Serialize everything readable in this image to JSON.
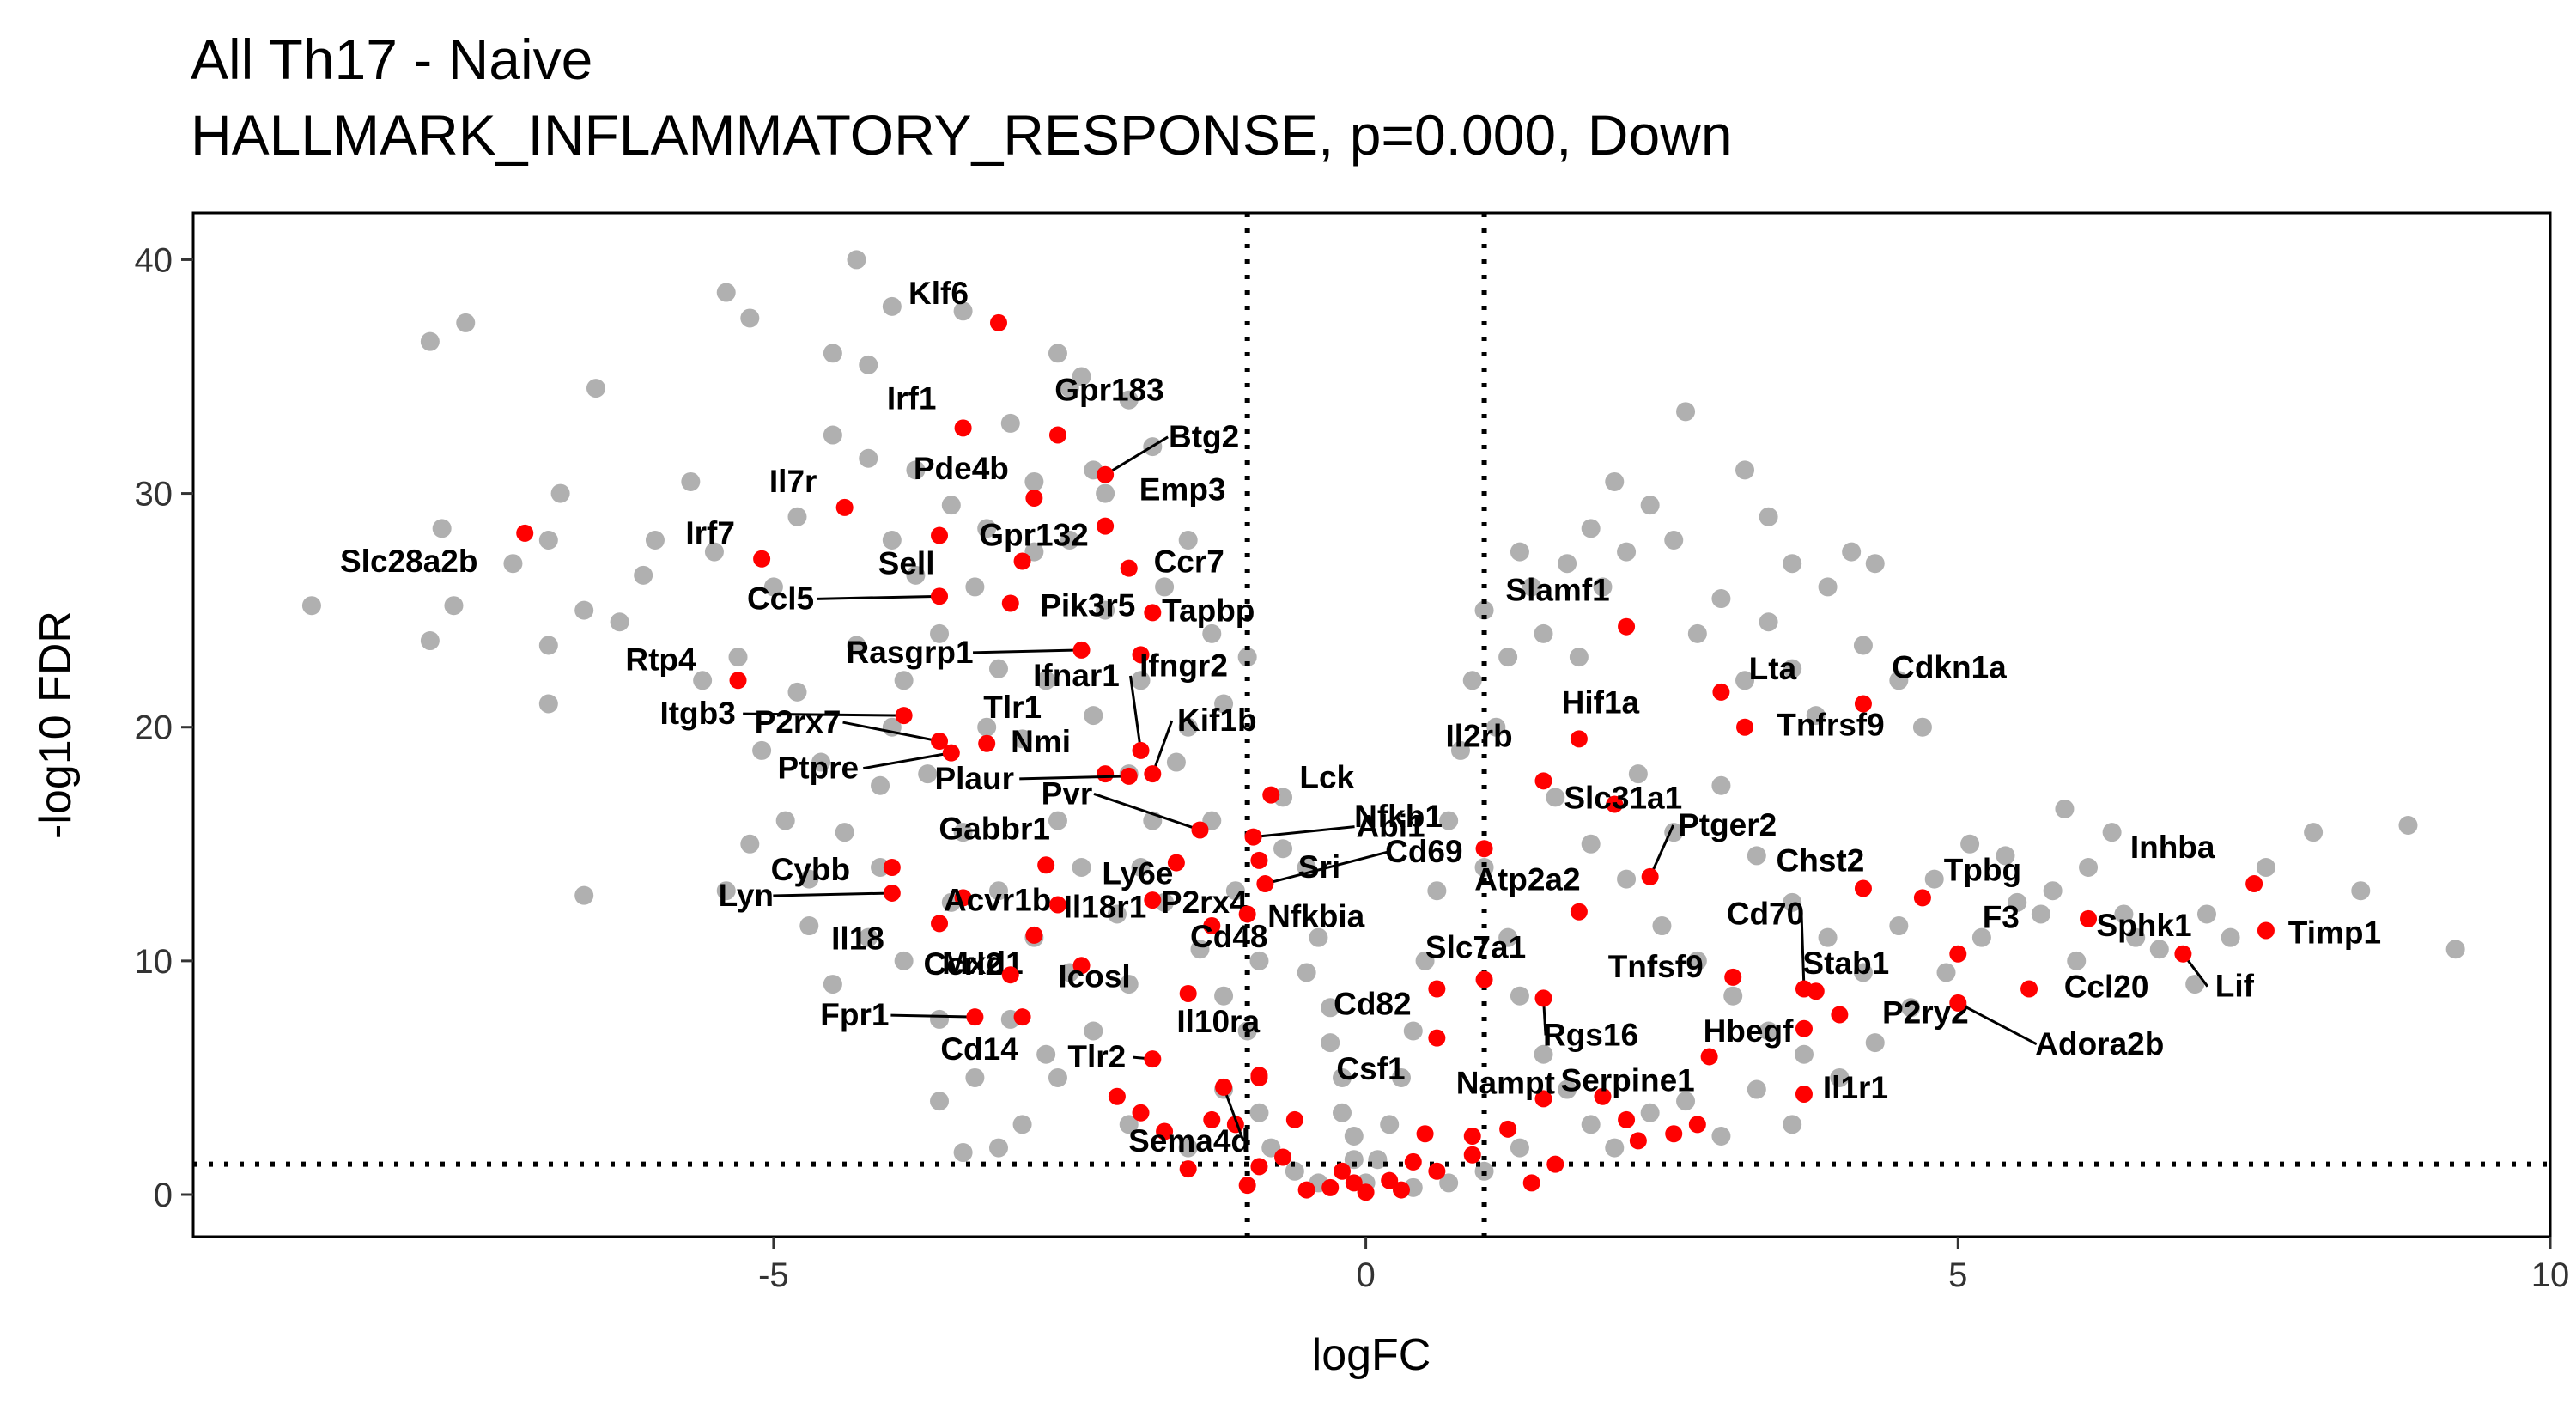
{
  "chart_data": {
    "type": "scatter",
    "title": "All Th17 - Naive",
    "subtitle": "HALLMARK_INFLAMMATORY_RESPONSE, p=0.000, Down",
    "xlabel": "logFC",
    "ylabel": "-log10 FDR",
    "xlim": [
      -9.9,
      10.0
    ],
    "ylim": [
      -1.8,
      42
    ],
    "xticks": [
      -5,
      0,
      5,
      10
    ],
    "yticks": [
      0,
      10,
      20,
      30,
      40
    ],
    "xtick_labels": [
      "-5",
      "0",
      "5",
      "10"
    ],
    "ytick_labels": [
      "0",
      "10",
      "20",
      "30",
      "40"
    ],
    "grid": false,
    "legend": "none",
    "thresholds": {
      "logfc": [
        -1,
        1
      ],
      "neg_log10_fdr": 1.3
    },
    "background_points_color": "#b0b0b0",
    "highlight_color": "#ff0000",
    "background_points": [
      [
        -8.9,
        25.2
      ],
      [
        -7.9,
        36.5
      ],
      [
        -7.6,
        37.3
      ],
      [
        -7.8,
        28.5
      ],
      [
        -7.2,
        27.0
      ],
      [
        -6.9,
        28.0
      ],
      [
        -6.5,
        34.5
      ],
      [
        -6.8,
        30.0
      ],
      [
        -6.6,
        25.0
      ],
      [
        -6.3,
        24.5
      ],
      [
        -6.0,
        28.0
      ],
      [
        -6.1,
        26.5
      ],
      [
        -5.7,
        30.5
      ],
      [
        -5.5,
        27.5
      ],
      [
        -6.6,
        12.8
      ],
      [
        -6.9,
        23.5
      ],
      [
        -6.9,
        21.0
      ],
      [
        -7.7,
        25.2
      ],
      [
        -7.9,
        23.7
      ],
      [
        -5.4,
        38.6
      ],
      [
        -5.2,
        37.5
      ],
      [
        -4.5,
        36.0
      ],
      [
        -4.2,
        35.5
      ],
      [
        -4.5,
        32.5
      ],
      [
        -4.2,
        31.5
      ],
      [
        -3.8,
        31.0
      ],
      [
        -4.8,
        29.0
      ],
      [
        -4.0,
        28.0
      ],
      [
        -3.5,
        29.5
      ],
      [
        -3.0,
        33.0
      ],
      [
        -2.5,
        34.5
      ],
      [
        -2.8,
        30.5
      ],
      [
        -2.3,
        31.0
      ],
      [
        -2.8,
        27.5
      ],
      [
        -2.0,
        34.0
      ],
      [
        -4.3,
        40.0
      ],
      [
        -4.0,
        38.0
      ],
      [
        -3.4,
        37.8
      ],
      [
        -2.6,
        36.0
      ],
      [
        -2.4,
        35.0
      ],
      [
        -1.8,
        32.0
      ],
      [
        -2.2,
        30.0
      ],
      [
        -1.7,
        26.0
      ],
      [
        -1.5,
        28.0
      ],
      [
        -1.3,
        24.0
      ],
      [
        -1.0,
        23.0
      ],
      [
        -1.2,
        21.0
      ],
      [
        -1.5,
        20.0
      ],
      [
        -0.7,
        17.0
      ],
      [
        -0.5,
        14.0
      ],
      [
        -0.4,
        11.0
      ],
      [
        -0.3,
        8.0
      ],
      [
        -0.2,
        5.0
      ],
      [
        -0.1,
        2.5
      ],
      [
        0.0,
        0.5
      ],
      [
        -5.0,
        26.0
      ],
      [
        -5.3,
        23.0
      ],
      [
        -5.6,
        22.0
      ],
      [
        -5.1,
        19.0
      ],
      [
        -4.8,
        21.5
      ],
      [
        -4.6,
        18.5
      ],
      [
        -4.9,
        16.0
      ],
      [
        -5.2,
        15.0
      ],
      [
        -5.4,
        13.0
      ],
      [
        -4.7,
        13.5
      ],
      [
        -4.4,
        15.5
      ],
      [
        -4.1,
        17.5
      ],
      [
        -3.9,
        22.0
      ],
      [
        -3.6,
        24.0
      ],
      [
        -3.3,
        26.0
      ],
      [
        -3.1,
        22.5
      ],
      [
        -2.9,
        19.5
      ],
      [
        -2.6,
        16.0
      ],
      [
        -2.4,
        14.0
      ],
      [
        -2.1,
        12.0
      ],
      [
        -2.0,
        9.0
      ],
      [
        -2.3,
        7.0
      ],
      [
        -2.6,
        5.0
      ],
      [
        -2.9,
        3.0
      ],
      [
        -3.3,
        5.0
      ],
      [
        -3.6,
        7.5
      ],
      [
        -3.9,
        10.0
      ],
      [
        -4.2,
        11.0
      ],
      [
        -4.5,
        9.0
      ],
      [
        -3.6,
        4.0
      ],
      [
        -3.1,
        2.0
      ],
      [
        -2.0,
        3.0
      ],
      [
        -1.5,
        2.0
      ],
      [
        -1.2,
        4.5
      ],
      [
        -0.9,
        3.5
      ],
      [
        -0.8,
        2.0
      ],
      [
        -0.6,
        1.0
      ],
      [
        -0.4,
        0.5
      ],
      [
        -3.4,
        1.8
      ],
      [
        -1.9,
        14.0
      ],
      [
        -1.7,
        12.5
      ],
      [
        -1.4,
        10.5
      ],
      [
        -1.2,
        8.5
      ],
      [
        -1.0,
        7.0
      ],
      [
        -0.9,
        10.0
      ],
      [
        -1.1,
        13.0
      ],
      [
        -1.3,
        16.0
      ],
      [
        -1.6,
        18.5
      ],
      [
        -1.9,
        22.0
      ],
      [
        -2.2,
        25.0
      ],
      [
        -2.5,
        28.0
      ],
      [
        -3.2,
        28.5
      ],
      [
        -3.8,
        26.5
      ],
      [
        -4.3,
        23.5
      ],
      [
        -4.0,
        20.0
      ],
      [
        -3.7,
        18.0
      ],
      [
        -3.4,
        15.5
      ],
      [
        -3.1,
        13.0
      ],
      [
        -2.8,
        11.0
      ],
      [
        -2.5,
        9.5
      ],
      [
        -3.0,
        7.5
      ],
      [
        -2.7,
        6.0
      ],
      [
        -3.5,
        12.5
      ],
      [
        -4.1,
        14.0
      ],
      [
        -4.7,
        11.5
      ],
      [
        -3.2,
        20.0
      ],
      [
        -2.7,
        22.0
      ],
      [
        -2.3,
        20.5
      ],
      [
        -2.0,
        18.0
      ],
      [
        -1.8,
        16.0
      ],
      [
        -0.7,
        14.8
      ],
      [
        -0.5,
        9.5
      ],
      [
        -0.3,
        6.5
      ],
      [
        -0.2,
        3.5
      ],
      [
        -0.1,
        1.5
      ],
      [
        0.1,
        1.5
      ],
      [
        0.2,
        3.0
      ],
      [
        0.3,
        5.0
      ],
      [
        0.4,
        7.0
      ],
      [
        0.5,
        10.0
      ],
      [
        0.6,
        13.0
      ],
      [
        0.7,
        16.0
      ],
      [
        0.8,
        19.0
      ],
      [
        0.9,
        22.0
      ],
      [
        1.0,
        25.0
      ],
      [
        1.1,
        20.0
      ],
      [
        1.2,
        23.0
      ],
      [
        1.4,
        26.0
      ],
      [
        1.5,
        24.0
      ],
      [
        1.7,
        27.0
      ],
      [
        1.8,
        23.0
      ],
      [
        2.0,
        26.0
      ],
      [
        2.2,
        27.5
      ],
      [
        2.4,
        29.5
      ],
      [
        2.6,
        28.0
      ],
      [
        2.7,
        33.5
      ],
      [
        2.8,
        24.0
      ],
      [
        3.0,
        25.5
      ],
      [
        3.2,
        22.0
      ],
      [
        3.4,
        24.5
      ],
      [
        3.6,
        22.5
      ],
      [
        3.8,
        20.5
      ],
      [
        2.1,
        30.5
      ],
      [
        1.9,
        28.5
      ],
      [
        1.3,
        27.5
      ],
      [
        1.0,
        14.0
      ],
      [
        1.2,
        11.0
      ],
      [
        1.3,
        8.5
      ],
      [
        1.5,
        6.0
      ],
      [
        1.7,
        4.5
      ],
      [
        1.9,
        3.0
      ],
      [
        2.1,
        2.0
      ],
      [
        1.3,
        2.0
      ],
      [
        1.0,
        1.0
      ],
      [
        0.7,
        0.5
      ],
      [
        0.4,
        0.3
      ],
      [
        1.6,
        17.0
      ],
      [
        1.9,
        15.0
      ],
      [
        2.2,
        13.5
      ],
      [
        2.5,
        11.5
      ],
      [
        2.8,
        10.0
      ],
      [
        3.1,
        8.5
      ],
      [
        3.4,
        7.0
      ],
      [
        3.7,
        6.0
      ],
      [
        4.0,
        5.0
      ],
      [
        4.3,
        6.5
      ],
      [
        4.6,
        8.0
      ],
      [
        4.9,
        9.5
      ],
      [
        5.2,
        11.0
      ],
      [
        5.5,
        12.5
      ],
      [
        5.8,
        13.0
      ],
      [
        6.1,
        14.0
      ],
      [
        6.4,
        12.0
      ],
      [
        6.7,
        10.5
      ],
      [
        7.0,
        9.0
      ],
      [
        7.3,
        11.0
      ],
      [
        7.6,
        14.0
      ],
      [
        8.0,
        15.5
      ],
      [
        8.4,
        13.0
      ],
      [
        8.8,
        15.8
      ],
      [
        9.2,
        10.5
      ],
      [
        6.3,
        15.5
      ],
      [
        5.9,
        16.5
      ],
      [
        4.5,
        22.0
      ],
      [
        4.7,
        20.0
      ],
      [
        4.2,
        23.5
      ],
      [
        3.9,
        26.0
      ],
      [
        4.1,
        27.5
      ],
      [
        4.3,
        27.0
      ],
      [
        3.6,
        27.0
      ],
      [
        3.4,
        29.0
      ],
      [
        3.2,
        31.0
      ],
      [
        2.3,
        18.0
      ],
      [
        2.6,
        15.5
      ],
      [
        3.0,
        17.5
      ],
      [
        3.3,
        14.5
      ],
      [
        3.6,
        12.5
      ],
      [
        3.9,
        11.0
      ],
      [
        4.2,
        9.5
      ],
      [
        4.5,
        11.5
      ],
      [
        4.8,
        13.5
      ],
      [
        5.1,
        15.0
      ],
      [
        5.4,
        14.5
      ],
      [
        5.7,
        12.0
      ],
      [
        6.0,
        10.0
      ],
      [
        6.5,
        11.0
      ],
      [
        7.1,
        12.0
      ],
      [
        3.0,
        2.5
      ],
      [
        2.7,
        4.0
      ],
      [
        2.4,
        3.5
      ],
      [
        3.3,
        4.5
      ],
      [
        3.6,
        3.0
      ]
    ],
    "highlighted_genes": [
      {
        "name": "Klf6",
        "x": -3.1,
        "y": 37.3
      },
      {
        "name": "Gpr183",
        "x": -2.6,
        "y": 32.5
      },
      {
        "name": "Irf1",
        "x": -3.4,
        "y": 32.8
      },
      {
        "name": "Btg2",
        "x": -2.2,
        "y": 30.8
      },
      {
        "name": "Il7r",
        "x": -4.4,
        "y": 29.4
      },
      {
        "name": "Pde4b",
        "x": -2.8,
        "y": 29.8
      },
      {
        "name": "Emp3",
        "x": -2.2,
        "y": 28.6
      },
      {
        "name": "Slc28a2b",
        "x": -7.1,
        "y": 28.3
      },
      {
        "name": "Irf7",
        "x": -5.1,
        "y": 27.2
      },
      {
        "name": "Gpr132",
        "x": -3.6,
        "y": 28.2
      },
      {
        "name": "Sell",
        "x": -2.9,
        "y": 27.1
      },
      {
        "name": "Ccr7",
        "x": -2.0,
        "y": 26.8
      },
      {
        "name": "Ccl5",
        "x": -3.6,
        "y": 25.6
      },
      {
        "name": "Pik3r5",
        "x": -3.0,
        "y": 25.3
      },
      {
        "name": "Tapbp",
        "x": -1.8,
        "y": 24.9
      },
      {
        "name": "Rasgrp1",
        "x": -2.4,
        "y": 23.3
      },
      {
        "name": "Ifngr2",
        "x": -1.9,
        "y": 23.1
      },
      {
        "name": "Rtp4",
        "x": -5.3,
        "y": 22.0
      },
      {
        "name": "Ifnar1",
        "x": -1.9,
        "y": 19.0
      },
      {
        "name": "Itgb3",
        "x": -3.9,
        "y": 20.5
      },
      {
        "name": "P2rx7",
        "x": -3.6,
        "y": 19.4
      },
      {
        "name": "Tlr1",
        "x": -3.2,
        "y": 19.3
      },
      {
        "name": "Ptpre",
        "x": -3.5,
        "y": 18.9
      },
      {
        "name": "Nmi",
        "x": -2.2,
        "y": 18.0
      },
      {
        "name": "Kif1b",
        "x": -1.8,
        "y": 18.0
      },
      {
        "name": "Plaur",
        "x": -2.0,
        "y": 17.9
      },
      {
        "name": "Lck",
        "x": -0.8,
        "y": 17.1
      },
      {
        "name": "Pvr",
        "x": -1.4,
        "y": 15.6
      },
      {
        "name": "Abi1",
        "x": -0.95,
        "y": 15.3
      },
      {
        "name": "Cybb",
        "x": -4.0,
        "y": 14.0
      },
      {
        "name": "Gabbr1",
        "x": -2.7,
        "y": 14.1
      },
      {
        "name": "Ly6e",
        "x": -1.6,
        "y": 14.2
      },
      {
        "name": "Sri",
        "x": -0.9,
        "y": 14.3
      },
      {
        "name": "Cd69",
        "x": -0.85,
        "y": 13.3
      },
      {
        "name": "Lyn",
        "x": -4.0,
        "y": 12.9
      },
      {
        "name": "Acvr1b",
        "x": -3.4,
        "y": 12.7
      },
      {
        "name": "Il18r1",
        "x": -2.6,
        "y": 12.4
      },
      {
        "name": "P2rx4",
        "x": -1.8,
        "y": 12.6
      },
      {
        "name": "Nfkbia",
        "x": -1.0,
        "y": 12.0
      },
      {
        "name": "Il18",
        "x": -3.6,
        "y": 11.6
      },
      {
        "name": "Mxd1",
        "x": -2.8,
        "y": 11.1
      },
      {
        "name": "Cd48",
        "x": -1.3,
        "y": 11.5
      },
      {
        "name": "Ccrl2",
        "x": -3.0,
        "y": 9.4
      },
      {
        "name": "Icosl",
        "x": -2.4,
        "y": 9.8
      },
      {
        "name": "Il10ra",
        "x": -1.5,
        "y": 8.6
      },
      {
        "name": "Fpr1",
        "x": -3.3,
        "y": 7.6
      },
      {
        "name": "Cd14",
        "x": -2.9,
        "y": 7.6
      },
      {
        "name": "Tlr2",
        "x": -1.8,
        "y": 5.8
      },
      {
        "name": "Csf1",
        "x": -0.9,
        "y": 5.1
      },
      {
        "name": "Sema4d",
        "x": -1.2,
        "y": 4.6
      },
      {
        "name": "Slamf1",
        "x": 2.2,
        "y": 24.3
      },
      {
        "name": "Lta",
        "x": 3.0,
        "y": 21.5
      },
      {
        "name": "Cdkn1a",
        "x": 4.2,
        "y": 21.0
      },
      {
        "name": "Hif1a",
        "x": 1.8,
        "y": 19.5
      },
      {
        "name": "Tnfrsf9",
        "x": 3.2,
        "y": 20.0
      },
      {
        "name": "Il2rb",
        "x": 1.5,
        "y": 17.7
      },
      {
        "name": "Slc31a1",
        "x": 2.1,
        "y": 16.7
      },
      {
        "name": "Nfkb1",
        "x": 1.0,
        "y": 14.8
      },
      {
        "name": "Ptger2",
        "x": 2.4,
        "y": 13.6
      },
      {
        "name": "Chst2",
        "x": 4.2,
        "y": 13.1
      },
      {
        "name": "Tpbg",
        "x": 4.7,
        "y": 12.7
      },
      {
        "name": "Inhba",
        "x": 7.5,
        "y": 13.3
      },
      {
        "name": "Timp1",
        "x": 7.6,
        "y": 11.3
      },
      {
        "name": "Atp2a2",
        "x": 1.8,
        "y": 12.1
      },
      {
        "name": "Sphk1",
        "x": 6.1,
        "y": 11.8
      },
      {
        "name": "F3",
        "x": 5.0,
        "y": 10.3
      },
      {
        "name": "Lif",
        "x": 6.9,
        "y": 10.3
      },
      {
        "name": "Cd70",
        "x": 3.7,
        "y": 8.8
      },
      {
        "name": "Slc7a1",
        "x": 1.0,
        "y": 9.2
      },
      {
        "name": "Tnfsf9",
        "x": 3.1,
        "y": 9.3
      },
      {
        "name": "Stab1",
        "x": 3.8,
        "y": 8.7
      },
      {
        "name": "Ccl20",
        "x": 5.6,
        "y": 8.8
      },
      {
        "name": "Cd82",
        "x": 0.6,
        "y": 8.8
      },
      {
        "name": "Rgs16",
        "x": 1.5,
        "y": 8.4
      },
      {
        "name": "Hbegf",
        "x": 3.7,
        "y": 7.1
      },
      {
        "name": "P2ry2",
        "x": 4.0,
        "y": 7.7
      },
      {
        "name": "Adora2b",
        "x": 5.0,
        "y": 8.2
      },
      {
        "name": "Nampt",
        "x": 0.6,
        "y": 6.7
      },
      {
        "name": "Serpine1",
        "x": 2.9,
        "y": 5.9
      },
      {
        "name": "Il1r1",
        "x": 3.7,
        "y": 4.3
      }
    ],
    "extra_highlight_points": [
      [
        -0.9,
        5.0
      ],
      [
        -1.3,
        3.2
      ],
      [
        -1.7,
        2.7
      ],
      [
        -2.1,
        4.2
      ],
      [
        -0.7,
        1.6
      ],
      [
        -0.2,
        1.0
      ],
      [
        -0.3,
        0.3
      ],
      [
        0.2,
        0.6
      ],
      [
        0.4,
        1.4
      ],
      [
        0.5,
        2.6
      ],
      [
        0.9,
        1.7
      ],
      [
        1.2,
        2.8
      ],
      [
        1.5,
        4.1
      ],
      [
        2.2,
        3.2
      ],
      [
        2.6,
        2.6
      ],
      [
        0.0,
        0.1
      ],
      [
        -0.5,
        0.2
      ],
      [
        0.3,
        0.2
      ],
      [
        0.9,
        2.5
      ],
      [
        -0.6,
        3.2
      ],
      [
        2.8,
        3.0
      ],
      [
        2.3,
        2.3
      ],
      [
        -0.1,
        0.5
      ],
      [
        0.6,
        1.0
      ],
      [
        1.4,
        0.5
      ],
      [
        -1.5,
        1.1
      ],
      [
        -0.9,
        1.2
      ],
      [
        -1.0,
        0.4
      ],
      [
        2.0,
        4.2
      ],
      [
        1.6,
        1.3
      ],
      [
        -1.9,
        3.5
      ],
      [
        -1.1,
        3.0
      ]
    ],
    "leader_lines": [
      "Btg2",
      "Ccl5",
      "Rasgrp1",
      "Itgb3",
      "P2rx7",
      "Ptpre",
      "Ifnar1",
      "Kif1b",
      "Plaur",
      "Pvr",
      "Abi1",
      "Cd69",
      "Lyn",
      "P2rx4",
      "Fpr1",
      "Tlr2",
      "Sema4d",
      "Ptger2",
      "Cd70",
      "Adora2b",
      "Lif",
      "Rgs16"
    ]
  }
}
